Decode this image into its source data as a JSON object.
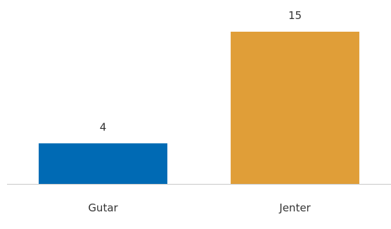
{
  "chart_data": {
    "type": "bar",
    "categories": [
      "Gutar",
      "Jenter"
    ],
    "values": [
      4,
      15
    ],
    "colors": [
      "#006ab4",
      "#e09e38"
    ],
    "data_labels": [
      "4",
      "15"
    ],
    "title": "",
    "xlabel": "",
    "ylabel": "",
    "ylim": [
      0,
      15
    ],
    "grid": false,
    "legend": "none"
  }
}
